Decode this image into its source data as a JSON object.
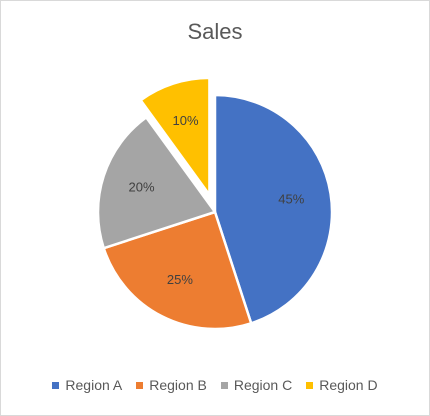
{
  "chart_data": {
    "type": "pie",
    "title": "Sales",
    "categories": [
      "Region A",
      "Region B",
      "Region C",
      "Region D"
    ],
    "values": [
      45,
      25,
      20,
      10
    ],
    "labels": [
      "45%",
      "25%",
      "20%",
      "10%"
    ],
    "colors": [
      "#4472C4",
      "#ED7D31",
      "#A5A5A5",
      "#FFC000"
    ],
    "exploded": [
      "Region D"
    ],
    "legend": "bottom"
  }
}
